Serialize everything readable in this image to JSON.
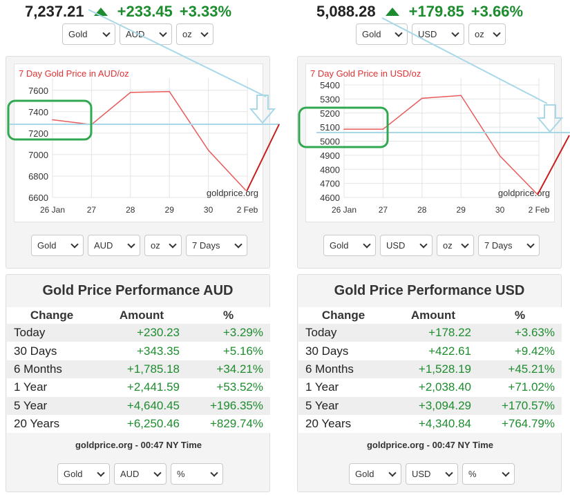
{
  "panels": [
    {
      "id": "aud",
      "ticker": {
        "price": "7,237.21",
        "change": "+233.45",
        "percent": "+3.33%"
      },
      "top_selects": [
        "Gold",
        "AUD",
        "oz"
      ],
      "chart_selects": [
        "Gold",
        "AUD",
        "oz",
        "7 Days"
      ],
      "chart_data": {
        "type": "line",
        "title": "7 Day Gold Price in AUD/oz",
        "categories": [
          "26 Jan",
          "27",
          "28",
          "29",
          "30",
          "2 Feb"
        ],
        "x": [
          0,
          1,
          2,
          3,
          4,
          5
        ],
        "values": [
          [
            0,
            7325
          ],
          [
            1,
            7280
          ],
          [
            2,
            7580
          ],
          [
            3,
            7588
          ],
          [
            4,
            7040
          ],
          [
            4.95,
            6670
          ]
        ],
        "yticks": [
          6600,
          6800,
          7000,
          7200,
          7400,
          7600
        ],
        "ylim": [
          6600,
          7650
        ],
        "grid": true,
        "watermark": "goldprice.org",
        "annotation_level": 7250,
        "annotation_box": [
          7190,
          7450
        ]
      },
      "perf": {
        "title": "Gold Price Performance AUD",
        "headers": [
          "Change",
          "Amount",
          "%"
        ],
        "rows": [
          {
            "label": "Today",
            "amount": "+230.23",
            "pct": "+3.29%"
          },
          {
            "label": "30 Days",
            "amount": "+343.35",
            "pct": "+5.16%"
          },
          {
            "label": "6 Months",
            "amount": "+1,785.18",
            "pct": "+34.21%"
          },
          {
            "label": "1 Year",
            "amount": "+2,441.59",
            "pct": "+53.52%"
          },
          {
            "label": "5 Year",
            "amount": "+4,640.45",
            "pct": "+196.35%"
          },
          {
            "label": "20 Years",
            "amount": "+6,250.46",
            "pct": "+829.74%"
          }
        ],
        "footer": "goldprice.org - 00:47 NY Time"
      },
      "bottom_selects": [
        "Gold",
        "AUD",
        "%"
      ]
    },
    {
      "id": "usd",
      "ticker": {
        "price": "5,088.28",
        "change": "+179.85",
        "percent": "+3.66%"
      },
      "top_selects": [
        "Gold",
        "USD",
        "oz"
      ],
      "chart_selects": [
        "Gold",
        "USD",
        "oz",
        "7 Days"
      ],
      "chart_data": {
        "type": "line",
        "title": "7 Day Gold Price in USD/oz",
        "categories": [
          "26 Jan",
          "27",
          "28",
          "29",
          "30",
          "2 Feb"
        ],
        "x": [
          0,
          1,
          2,
          3,
          4,
          5
        ],
        "values": [
          [
            0,
            5085
          ],
          [
            1,
            5085
          ],
          [
            2,
            5305
          ],
          [
            3,
            5325
          ],
          [
            4,
            4895
          ],
          [
            4.95,
            4625
          ]
        ],
        "yticks": [
          4600,
          4700,
          4800,
          4900,
          5000,
          5100,
          5200,
          5300,
          5400
        ],
        "ylim": [
          4600,
          5400
        ],
        "grid": true,
        "watermark": "goldprice.org",
        "annotation_level": 5050,
        "annotation_box": [
          4960,
          5150
        ]
      },
      "perf": {
        "title": "Gold Price Performance USD",
        "headers": [
          "Change",
          "Amount",
          "%"
        ],
        "rows": [
          {
            "label": "Today",
            "amount": "+178.22",
            "pct": "+3.63%"
          },
          {
            "label": "30 Days",
            "amount": "+422.61",
            "pct": "+9.42%"
          },
          {
            "label": "6 Months",
            "amount": "+1,528.19",
            "pct": "+45.21%"
          },
          {
            "label": "1 Year",
            "amount": "+2,038.40",
            "pct": "+71.02%"
          },
          {
            "label": "5 Year",
            "amount": "+3,094.29",
            "pct": "+170.57%"
          },
          {
            "label": "20 Years",
            "amount": "+4,340.84",
            "pct": "+764.79%"
          }
        ],
        "footer": "goldprice.org - 00:47 NY Time"
      },
      "bottom_selects": [
        "Gold",
        "USD",
        "%"
      ]
    }
  ],
  "colors": {
    "up": "#1d8c2e",
    "chart_line": "#e85a5a",
    "chart_title": "#e03030",
    "annotation_blue": "#a8d8e8",
    "annotation_green": "#2fa84f",
    "annotation_red": "#c81e1e"
  }
}
